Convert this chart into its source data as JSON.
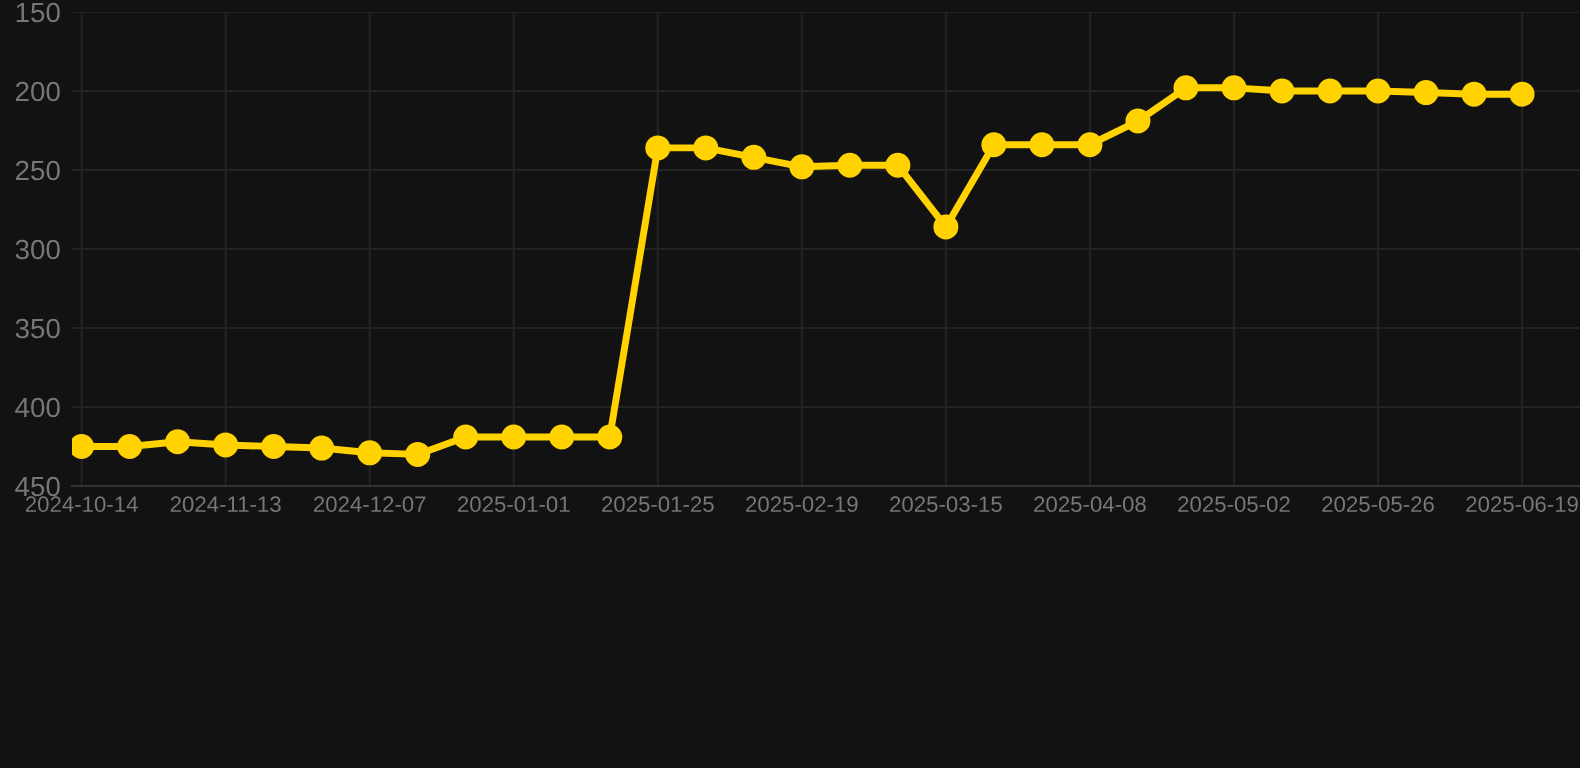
{
  "chart_data": {
    "type": "line",
    "categories": [
      "2024-10-14",
      null,
      null,
      "2024-11-13",
      null,
      null,
      "2024-12-07",
      null,
      null,
      "2025-01-01",
      null,
      null,
      "2025-01-25",
      null,
      null,
      "2025-02-19",
      null,
      null,
      "2025-03-15",
      null,
      null,
      "2025-04-08",
      null,
      null,
      "2025-05-02",
      null,
      null,
      "2025-05-26",
      null,
      null,
      "2025-06-19"
    ],
    "series": [
      {
        "color": "#ffd200",
        "values": [
          425,
          425,
          422,
          424,
          425,
          426,
          429,
          430,
          419,
          419,
          419,
          419,
          236,
          236,
          242,
          248,
          247,
          247,
          286,
          234,
          234,
          234,
          219,
          198,
          198,
          200,
          200,
          200,
          201,
          202,
          202
        ]
      }
    ],
    "ylim": [
      450,
      150
    ],
    "yticks": [
      150,
      200,
      250,
      300,
      350,
      400,
      450
    ],
    "grid": true,
    "marker": "circle",
    "line_style": "solid"
  }
}
